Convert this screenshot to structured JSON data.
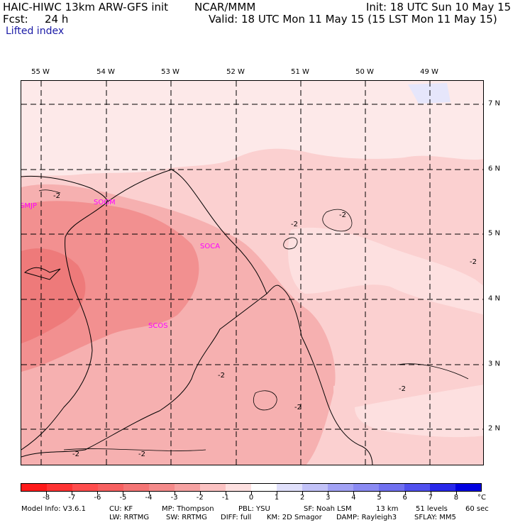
{
  "header": {
    "model_line": "HAIC-HIWC 13km ARW-GFS init",
    "org": "NCAR/MMM",
    "init": "Init: 18 UTC Sun 10 May 15",
    "fcst_label": "Fcst:",
    "fcst_value": "24 h",
    "valid": "Valid: 18 UTC Mon 11 May 15 (15 LST Mon 11 May 15)",
    "field": "Lifted index"
  },
  "axes": {
    "lon_labels": [
      "55 W",
      "54 W",
      "53 W",
      "52 W",
      "51 W",
      "50 W",
      "49 W"
    ],
    "lat_labels": [
      "7 N",
      "6 N",
      "5 N",
      "4 N",
      "3 N",
      "2 N"
    ]
  },
  "stations": [
    "SMJP",
    "SOGM",
    "SOCA",
    "SCOS"
  ],
  "contour_labels": [
    "-2"
  ],
  "colorbar": {
    "labels": [
      "-8",
      "-7",
      "-6",
      "-5",
      "-4",
      "-3",
      "-2",
      "-1",
      "0",
      "1",
      "2",
      "3",
      "4",
      "5",
      "6",
      "7",
      "8"
    ],
    "unit": "°C",
    "colors": [
      "#ff1a1a",
      "#ff3333",
      "#ff4d4d",
      "#f76060",
      "#f47575",
      "#f48a8a",
      "#f6a2a2",
      "#fbc2c2",
      "#fde0e0",
      "#ffffff",
      "#e0e0fb",
      "#c2c2f8",
      "#a2a2f5",
      "#8a8af3",
      "#7070f0",
      "#5050ee",
      "#2828ea",
      "#0000e0"
    ]
  },
  "footer": {
    "line1": {
      "model_info": "Model Info: V3.6.1",
      "cu": "CU: KF",
      "mp": "MP: Thompson",
      "pbl": "PBL: YSU",
      "sf": "SF: Noah LSM",
      "res": "13 km",
      "levels": "51 levels",
      "dt": "60 sec"
    },
    "line2": {
      "lw": "LW: RRTMG",
      "sw": "SW: RRTMG",
      "diff": "DIFF: full",
      "km": "KM: 2D Smagor",
      "damp": "DAMP: Rayleigh3",
      "sflay": "SFLAY: MM5"
    }
  },
  "colors": {
    "lightest": "#fde9e9",
    "light": "#fbd0d0",
    "medium": "#f6b0b0",
    "strong": "#f29090",
    "strongest": "#ee7a7a",
    "blue_patch": "#e6e6fb",
    "station": "#ff00ff"
  }
}
